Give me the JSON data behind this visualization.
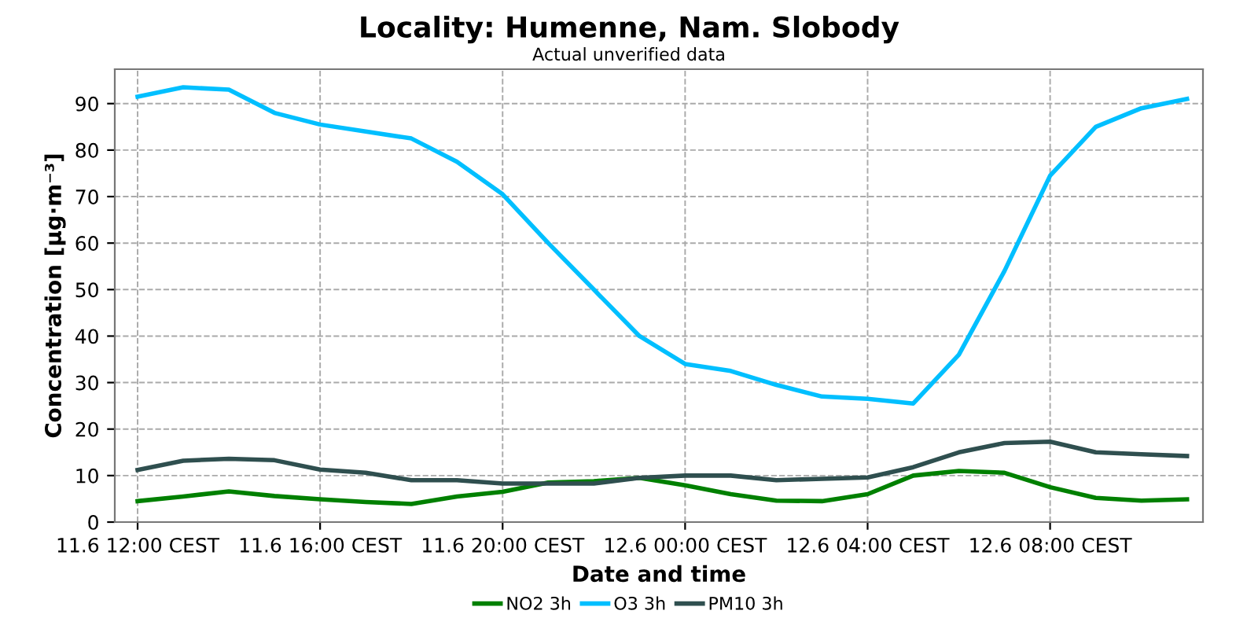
{
  "chart_data": {
    "type": "line",
    "title": "Locality: Humenne, Nam. Slobody",
    "subtitle": "Actual unverified data",
    "xlabel": "Date and time",
    "ylabel": "Concentration [µg·m⁻³]",
    "categories": [
      "11.6 12:00 CEST",
      null,
      null,
      null,
      "11.6 16:00 CEST",
      null,
      null,
      null,
      "11.6 20:00 CEST",
      null,
      null,
      null,
      "12.6 00:00 CEST",
      null,
      null,
      null,
      "12.6 04:00 CEST",
      null,
      null,
      null,
      "12.6 08:00 CEST",
      null,
      null,
      null
    ],
    "series": [
      {
        "name": "NO2 3h",
        "color": "#008000",
        "values": [
          4.5,
          5.5,
          6.6,
          5.6,
          4.9,
          4.3,
          3.9,
          5.5,
          6.5,
          8.5,
          8.8,
          9.5,
          7.9,
          6,
          4.6,
          4.5,
          6,
          10,
          11,
          10.6,
          7.5,
          5.2,
          4.6,
          4.9
        ]
      },
      {
        "name": "O3 3h",
        "color": "#00bfff",
        "values": [
          91.5,
          93.5,
          93,
          88,
          85.5,
          84,
          82.5,
          77.5,
          70.5,
          60,
          50,
          40,
          34,
          32.5,
          29.5,
          27,
          26.5,
          25.5,
          36,
          54,
          74.5,
          85,
          89,
          91
        ]
      },
      {
        "name": "PM10 3h",
        "color": "#2f4f4f",
        "values": [
          11.2,
          13.2,
          13.6,
          13.3,
          11.3,
          10.6,
          9,
          9,
          8.3,
          8.3,
          8.3,
          9.5,
          10,
          10,
          9,
          9.3,
          9.6,
          11.8,
          15,
          17,
          17.3,
          15,
          14.6,
          14.2
        ]
      }
    ],
    "ylim": [
      0,
      97.4
    ],
    "yticks": [
      0,
      10,
      20,
      30,
      40,
      50,
      60,
      70,
      80,
      90
    ],
    "grid": true,
    "legend": "bottom",
    "marker": "none",
    "line_style": "solid"
  }
}
